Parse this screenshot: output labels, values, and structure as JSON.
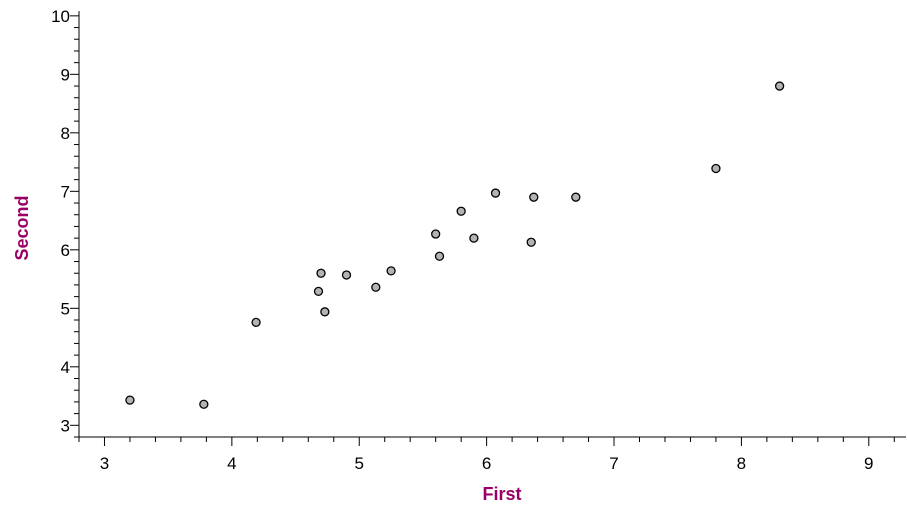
{
  "chart_data": {
    "type": "scatter",
    "xlabel": "First",
    "ylabel": "Second",
    "xlim": [
      2.8,
      9.3
    ],
    "ylim": [
      2.8,
      10.1
    ],
    "xticks": [
      3,
      4,
      5,
      6,
      7,
      8,
      9
    ],
    "yticks": [
      3,
      4,
      5,
      6,
      7,
      8,
      9,
      10
    ],
    "minor_tick_step": 0.2,
    "grid": false,
    "colors": {
      "axis_title": "#990066",
      "point_fill": "#b3b3b3",
      "point_stroke": "#000000"
    },
    "points": [
      {
        "x": 3.2,
        "y": 3.43
      },
      {
        "x": 3.78,
        "y": 3.36
      },
      {
        "x": 4.19,
        "y": 4.76
      },
      {
        "x": 4.68,
        "y": 5.29
      },
      {
        "x": 4.7,
        "y": 5.6
      },
      {
        "x": 4.73,
        "y": 4.94
      },
      {
        "x": 4.9,
        "y": 5.57
      },
      {
        "x": 5.13,
        "y": 5.36
      },
      {
        "x": 5.25,
        "y": 5.64
      },
      {
        "x": 5.6,
        "y": 6.27
      },
      {
        "x": 5.63,
        "y": 5.89
      },
      {
        "x": 5.8,
        "y": 6.66
      },
      {
        "x": 5.9,
        "y": 6.2
      },
      {
        "x": 6.07,
        "y": 6.97
      },
      {
        "x": 6.35,
        "y": 6.13
      },
      {
        "x": 6.37,
        "y": 6.9
      },
      {
        "x": 6.7,
        "y": 6.9
      },
      {
        "x": 7.8,
        "y": 7.39
      },
      {
        "x": 8.3,
        "y": 8.8
      }
    ]
  }
}
